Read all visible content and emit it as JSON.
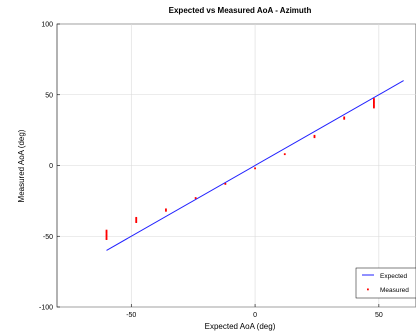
{
  "chart_data": {
    "type": "scatter",
    "title": "Expected vs Measured AoA - Azimuth",
    "xlabel": "Expected AoA (deg)",
    "ylabel": "Measured AoA (deg)",
    "xlim": [
      -80,
      65
    ],
    "ylim": [
      -100,
      100
    ],
    "xticks": [
      -50,
      0,
      50
    ],
    "yticks": [
      -100,
      -50,
      0,
      50,
      100
    ],
    "grid": true,
    "legend_position": "bottom-right",
    "series": [
      {
        "name": "Expected",
        "kind": "line",
        "color": "#2020ff",
        "x": [
          -60,
          60
        ],
        "y": [
          -60,
          60
        ]
      },
      {
        "name": "Measured",
        "kind": "scatter",
        "color": "#ff0000",
        "x": [
          -60,
          -60,
          -60,
          -60,
          -60,
          -60,
          -60,
          -48,
          -48,
          -48,
          -48,
          -36,
          -36,
          -24,
          -12,
          0,
          12,
          24,
          24,
          36,
          36,
          48,
          48,
          48,
          48,
          48,
          48,
          48
        ],
        "y": [
          -46,
          -47,
          -48,
          -49,
          -50,
          -51,
          -52,
          -37,
          -38,
          -39,
          -40,
          -31,
          -32,
          -23,
          -13,
          -2,
          8,
          20,
          21,
          33,
          34,
          41,
          42,
          43,
          44,
          45,
          46,
          47
        ]
      }
    ]
  }
}
